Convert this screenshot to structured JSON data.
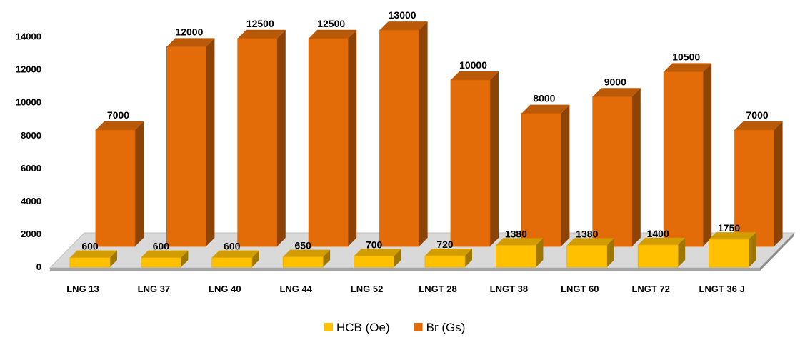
{
  "chart_data": {
    "type": "bar",
    "title": "",
    "xlabel": "",
    "ylabel": "",
    "categories": [
      "LNG 13",
      "LNG 37",
      "LNG 40",
      "LNG 44",
      "LNG 52",
      "LNGT 28",
      "LNGT 38",
      "LNGT 60",
      "LNGT 72",
      "LNGT 36 J"
    ],
    "ylim": [
      0,
      14000
    ],
    "yticks": [
      "0",
      "2000",
      "4000",
      "6000",
      "8000",
      "10000",
      "12000",
      "14000"
    ],
    "series": [
      {
        "name": "HCB (Oe)",
        "color": "#FFC000",
        "values": [
          600,
          600,
          600,
          650,
          700,
          720,
          1380,
          1380,
          1400,
          1750
        ],
        "labels": [
          "600",
          "600",
          "600",
          "650",
          "700",
          "720",
          "1380",
          "1380",
          "1400",
          "1750"
        ]
      },
      {
        "name": "Br (Gs)",
        "color": "#E36C09",
        "values": [
          7000,
          12000,
          12500,
          12500,
          13000,
          10000,
          8000,
          9000,
          10500,
          7000
        ],
        "labels": [
          "7000",
          "12000",
          "12500",
          "12500",
          "13000",
          "10000",
          "8000",
          "9000",
          "10500",
          "7000"
        ]
      }
    ],
    "legend_position": "bottom",
    "grid": false,
    "style": "3d-column"
  }
}
